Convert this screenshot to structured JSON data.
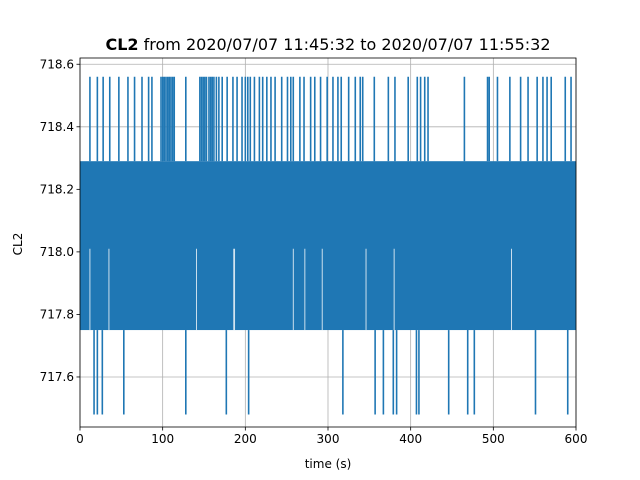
{
  "chart_data": {
    "type": "line",
    "title_bold": "CL2",
    "title_rest": " from 2020/07/07 11:45:32 to 2020/07/07 11:55:32",
    "xlabel": "time (s)",
    "ylabel": "CL2",
    "xlim": [
      0,
      600
    ],
    "ylim": [
      717.44,
      718.62
    ],
    "x_ticks": [
      0,
      100,
      200,
      300,
      400,
      500,
      600
    ],
    "y_ticks": [
      717.6,
      717.8,
      718.0,
      718.2,
      718.4,
      718.6
    ],
    "y_tick_labels": [
      "717.6",
      "717.8",
      "718.0",
      "718.2",
      "718.4",
      "718.6"
    ],
    "grid": true,
    "color": "#1f77b4",
    "series": [
      {
        "band_low": 717.75,
        "band_high": 718.29,
        "upper_level": 718.56,
        "lower_level": 717.48,
        "mid_low_level": 718.01,
        "upper_spike_times": [
          12,
          21,
          28,
          36,
          47,
          58,
          66,
          75,
          83,
          87,
          98,
          100,
          102,
          104,
          106,
          108,
          110,
          112,
          114,
          128,
          145,
          147,
          149,
          151,
          153,
          156,
          158,
          160,
          162,
          165,
          168,
          172,
          178,
          185,
          190,
          196,
          200,
          203,
          206,
          211,
          217,
          221,
          226,
          231,
          236,
          244,
          251,
          255,
          258,
          266,
          271,
          279,
          284,
          291,
          299,
          306,
          312,
          316,
          325,
          333,
          339,
          342,
          356,
          373,
          381,
          397,
          408,
          412,
          417,
          421,
          465,
          493,
          495,
          505,
          520,
          533,
          542,
          553,
          560,
          565,
          570,
          587,
          594
        ],
        "lower_spike_times": [
          17,
          21,
          27,
          53,
          128,
          177,
          204,
          318,
          357,
          367,
          379,
          383,
          407,
          410,
          446,
          469,
          477,
          551,
          590
        ],
        "mid_low_spike_times": [
          12,
          35,
          141,
          186,
          187,
          258,
          272,
          293,
          346,
          380,
          522
        ]
      }
    ]
  }
}
